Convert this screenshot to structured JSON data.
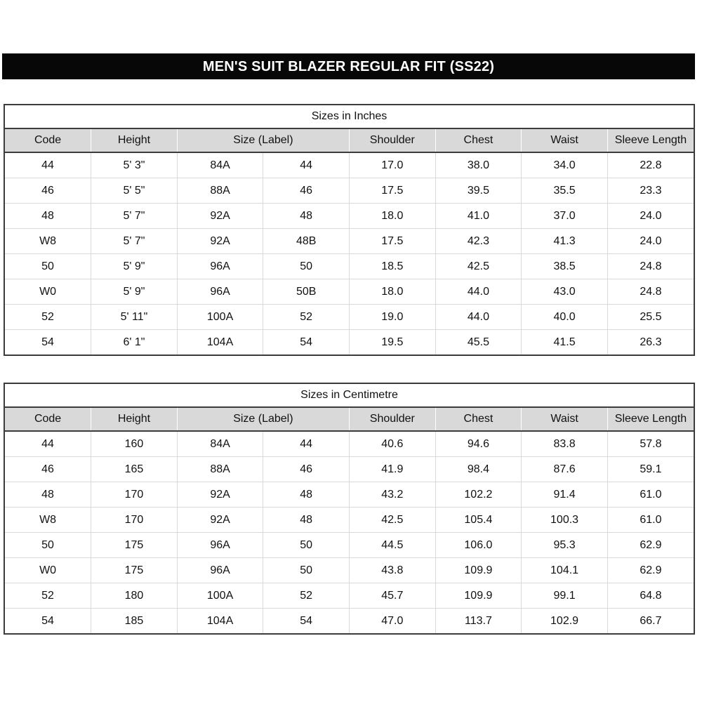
{
  "title_bar": {
    "text": "MEN'S SUIT BLAZER REGULAR FIT (SS22)",
    "bg_color": "#070707",
    "text_color": "#ffffff"
  },
  "colors": {
    "header_fill": "#d9d9d9",
    "grid_line": "#d9d9d9",
    "outer_border": "#3c3c3c",
    "page_background": "#ffffff"
  },
  "tables": {
    "inches": {
      "caption": "Sizes in Inches",
      "header": [
        "Code",
        "Height",
        "Size (Label)",
        "Shoulder",
        "Chest",
        "Waist",
        "Sleeve Length"
      ],
      "header_spans": [
        1,
        1,
        2,
        1,
        1,
        1,
        1
      ],
      "rows": [
        [
          "44",
          "5' 3\"",
          "84A",
          "44",
          "17.0",
          "38.0",
          "34.0",
          "22.8"
        ],
        [
          "46",
          "5' 5\"",
          "88A",
          "46",
          "17.5",
          "39.5",
          "35.5",
          "23.3"
        ],
        [
          "48",
          "5' 7\"",
          "92A",
          "48",
          "18.0",
          "41.0",
          "37.0",
          "24.0"
        ],
        [
          "W8",
          "5' 7\"",
          "92A",
          "48B",
          "17.5",
          "42.3",
          "41.3",
          "24.0"
        ],
        [
          "50",
          "5' 9\"",
          "96A",
          "50",
          "18.5",
          "42.5",
          "38.5",
          "24.8"
        ],
        [
          "W0",
          "5' 9\"",
          "96A",
          "50B",
          "18.0",
          "44.0",
          "43.0",
          "24.8"
        ],
        [
          "52",
          "5' 11\"",
          "100A",
          "52",
          "19.0",
          "44.0",
          "40.0",
          "25.5"
        ],
        [
          "54",
          "6' 1\"",
          "104A",
          "54",
          "19.5",
          "45.5",
          "41.5",
          "26.3"
        ]
      ]
    },
    "centimetre": {
      "caption": "Sizes in Centimetre",
      "header": [
        "Code",
        "Height",
        "Size (Label)",
        "Shoulder",
        "Chest",
        "Waist",
        "Sleeve Length"
      ],
      "header_spans": [
        1,
        1,
        2,
        1,
        1,
        1,
        1
      ],
      "rows": [
        [
          "44",
          "160",
          "84A",
          "44",
          "40.6",
          "94.6",
          "83.8",
          "57.8"
        ],
        [
          "46",
          "165",
          "88A",
          "46",
          "41.9",
          "98.4",
          "87.6",
          "59.1"
        ],
        [
          "48",
          "170",
          "92A",
          "48",
          "43.2",
          "102.2",
          "91.4",
          "61.0"
        ],
        [
          "W8",
          "170",
          "92A",
          "48",
          "42.5",
          "105.4",
          "100.3",
          "61.0"
        ],
        [
          "50",
          "175",
          "96A",
          "50",
          "44.5",
          "106.0",
          "95.3",
          "62.9"
        ],
        [
          "W0",
          "175",
          "96A",
          "50",
          "43.8",
          "109.9",
          "104.1",
          "62.9"
        ],
        [
          "52",
          "180",
          "100A",
          "52",
          "45.7",
          "109.9",
          "99.1",
          "64.8"
        ],
        [
          "54",
          "185",
          "104A",
          "54",
          "47.0",
          "113.7",
          "102.9",
          "66.7"
        ]
      ]
    }
  }
}
